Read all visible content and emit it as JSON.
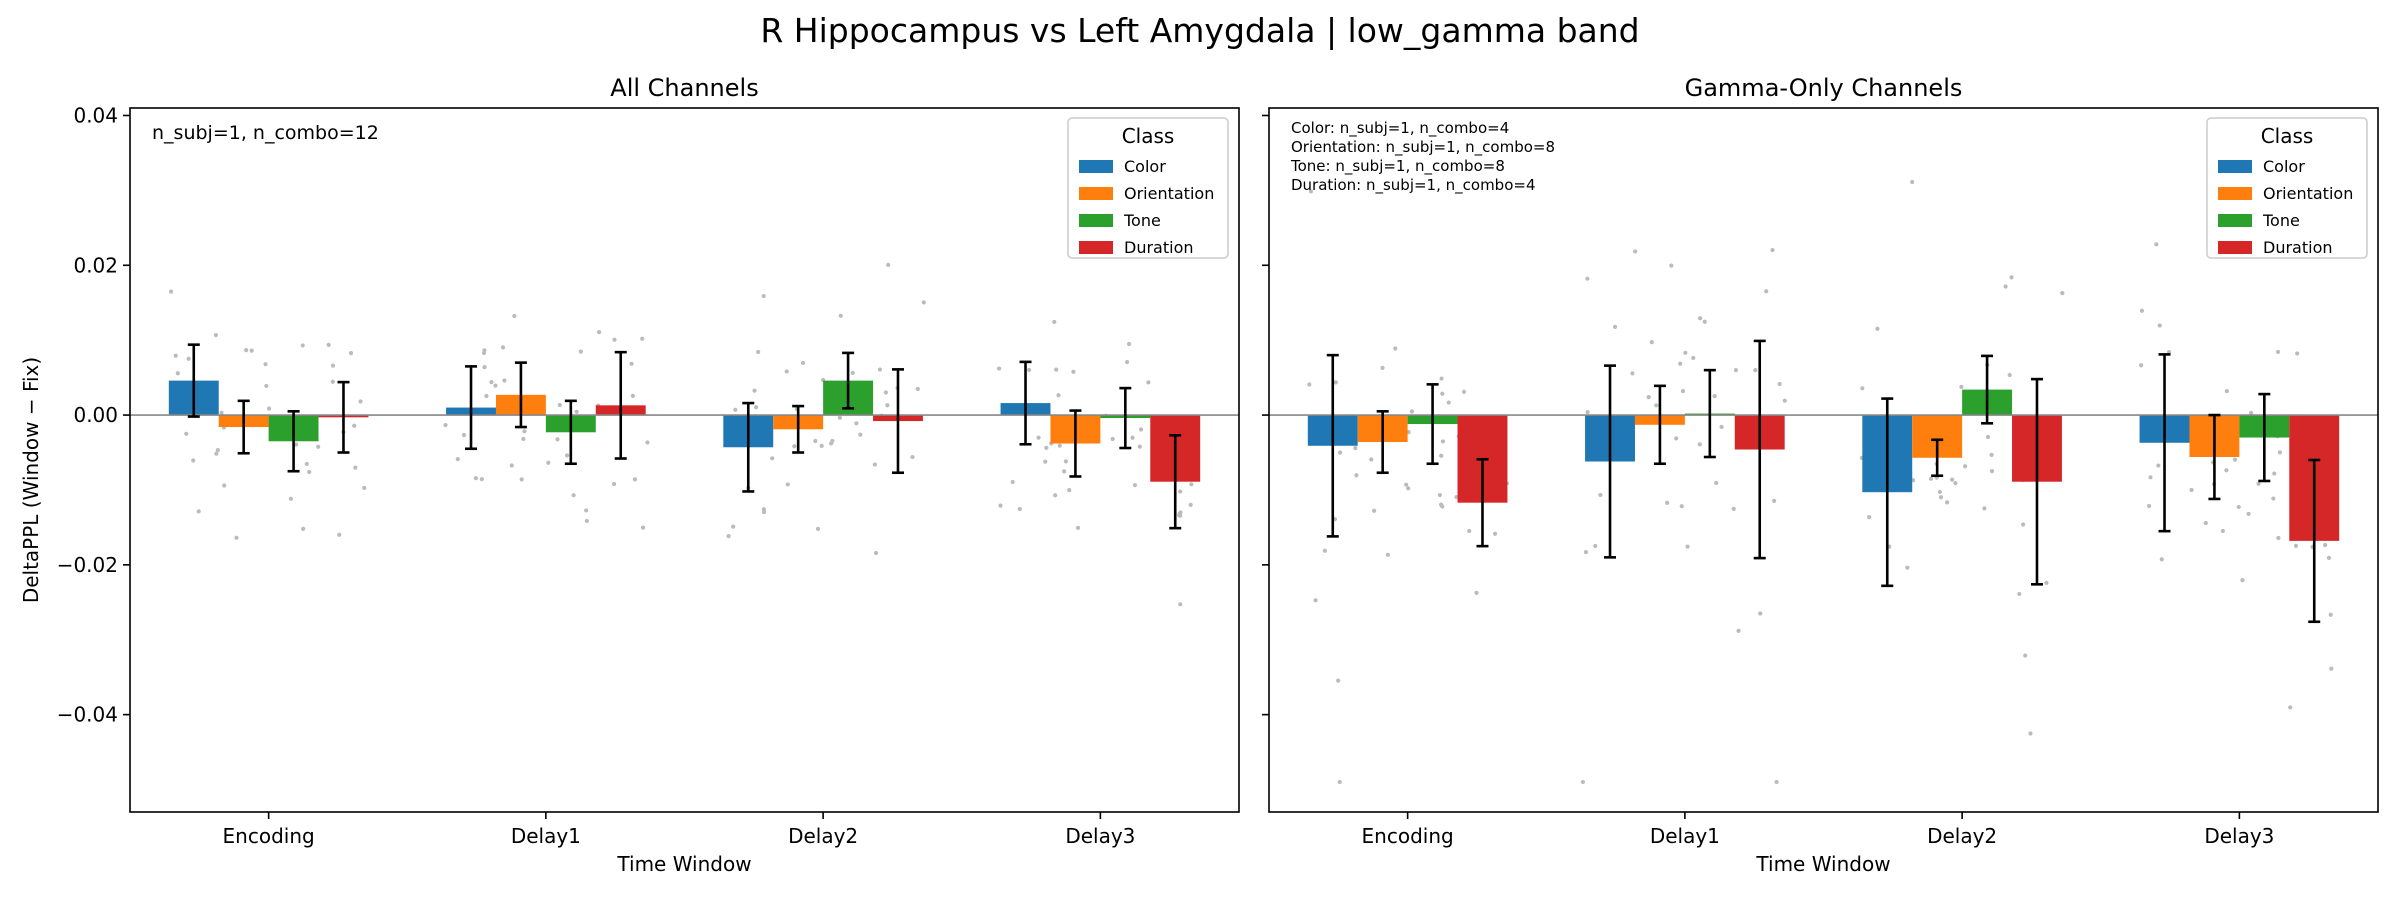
{
  "figure_title": "R Hippocampus vs Left Amygdala  |  low_gamma band",
  "colors": {
    "Color": "#1f77b4",
    "Orientation": "#ff7f0e",
    "Tone": "#2ca02c",
    "Duration": "#d62728",
    "points": "#bbbbbb",
    "zero_line": "#888888"
  },
  "chart_data": [
    {
      "type": "bar",
      "title": "All Channels",
      "xlabel": "Time Window",
      "ylabel": "DeltaPPL (Window − Fix)",
      "ylim": [
        -0.053,
        0.041
      ],
      "yticks": [
        0.04,
        0.02,
        0.0,
        -0.02,
        -0.04
      ],
      "ytick_labels": [
        "0.04",
        "0.02",
        "0.00",
        "−0.02",
        "−0.04"
      ],
      "categories": [
        "Encoding",
        "Delay1",
        "Delay2",
        "Delay3"
      ],
      "annotation": [
        "n_subj=1, n_combo=12"
      ],
      "legend_title": "Class",
      "legend_position": "top-right",
      "series": [
        {
          "name": "Color",
          "values": [
            0.0046,
            0.001,
            -0.0043,
            0.0016
          ],
          "errors": [
            0.0048,
            0.0055,
            0.0059,
            0.0055
          ]
        },
        {
          "name": "Orientation",
          "values": [
            -0.0016,
            0.0027,
            -0.0019,
            -0.0038
          ],
          "errors": [
            0.0035,
            0.0043,
            0.0031,
            0.0044
          ]
        },
        {
          "name": "Tone",
          "values": [
            -0.0035,
            -0.0023,
            0.0046,
            -0.0004
          ],
          "errors": [
            0.004,
            0.0042,
            0.0037,
            0.004
          ]
        },
        {
          "name": "Duration",
          "values": [
            -0.0003,
            0.0013,
            -0.0008,
            -0.0089
          ],
          "errors": [
            0.0047,
            0.0071,
            0.0069,
            0.0062
          ]
        }
      ]
    },
    {
      "type": "bar",
      "title": "Gamma-Only Channels",
      "xlabel": "Time Window",
      "ylabel": "",
      "ylim": [
        -0.053,
        0.041
      ],
      "yticks": [
        0.04,
        0.02,
        0.0,
        -0.02,
        -0.04
      ],
      "ytick_labels": [
        "",
        "",
        "",
        "",
        ""
      ],
      "categories": [
        "Encoding",
        "Delay1",
        "Delay2",
        "Delay3"
      ],
      "annotation": [
        "Color: n_subj=1, n_combo=4",
        "Orientation: n_subj=1, n_combo=8",
        "Tone: n_subj=1, n_combo=8",
        "Duration: n_subj=1, n_combo=4"
      ],
      "legend_title": "Class",
      "legend_position": "top-right",
      "series": [
        {
          "name": "Color",
          "values": [
            -0.0041,
            -0.0062,
            -0.0103,
            -0.0037
          ],
          "errors": [
            0.0121,
            0.0128,
            0.0125,
            0.0118
          ]
        },
        {
          "name": "Orientation",
          "values": [
            -0.0036,
            -0.0013,
            -0.0057,
            -0.0056
          ],
          "errors": [
            0.0041,
            0.0052,
            0.0024,
            0.0056
          ]
        },
        {
          "name": "Tone",
          "values": [
            -0.0012,
            0.0002,
            0.0034,
            -0.003
          ],
          "errors": [
            0.0053,
            0.0058,
            0.0045,
            0.0058
          ]
        },
        {
          "name": "Duration",
          "values": [
            -0.0117,
            -0.0046,
            -0.0089,
            -0.0168
          ],
          "errors": [
            0.0058,
            0.0145,
            0.0137,
            0.0108
          ]
        }
      ]
    }
  ]
}
